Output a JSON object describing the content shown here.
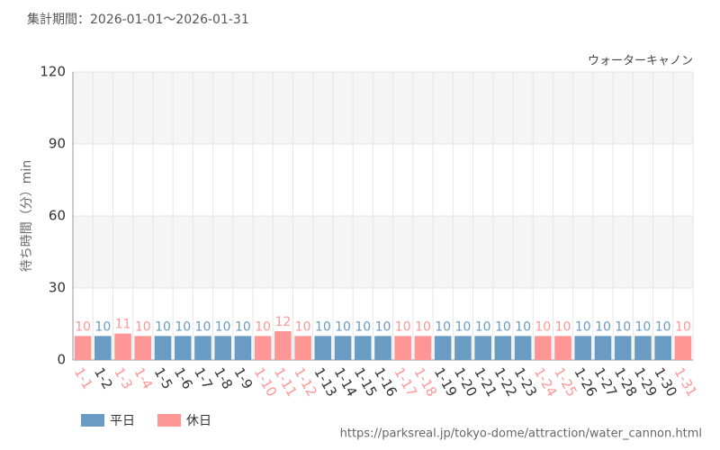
{
  "chart_data": {
    "type": "bar",
    "subtitle": "集計期間：2026-01-01～2026-01-31",
    "title": "ウォーターキャノン",
    "y_label": "待ち時間（分）min",
    "source": "https://parksreal.jp/tokyo-dome/attraction/water_cannon.html",
    "categories": [
      "1-1",
      "1-2",
      "1-3",
      "1-4",
      "1-5",
      "1-6",
      "1-7",
      "1-8",
      "1-9",
      "1-10",
      "1-11",
      "1-12",
      "1-13",
      "1-14",
      "1-15",
      "1-16",
      "1-17",
      "1-18",
      "1-19",
      "1-20",
      "1-21",
      "1-22",
      "1-23",
      "1-24",
      "1-25",
      "1-26",
      "1-27",
      "1-28",
      "1-29",
      "1-30",
      "1-31"
    ],
    "series": [
      {
        "name": "平日",
        "color": "#6a9bc3",
        "values": [
          null,
          10,
          null,
          null,
          10,
          10,
          10,
          10,
          10,
          null,
          null,
          null,
          10,
          10,
          10,
          10,
          null,
          null,
          10,
          10,
          10,
          10,
          10,
          null,
          null,
          10,
          10,
          10,
          10,
          10,
          null
        ]
      },
      {
        "name": "休日",
        "color": "#ff9696",
        "values": [
          10,
          null,
          11,
          10,
          null,
          null,
          null,
          null,
          null,
          10,
          12,
          10,
          null,
          null,
          null,
          null,
          10,
          10,
          null,
          null,
          null,
          null,
          null,
          10,
          10,
          null,
          null,
          null,
          null,
          null,
          10
        ]
      }
    ],
    "ylim": [
      0,
      120
    ],
    "yticks": [
      0,
      30,
      60,
      90,
      120
    ],
    "grid": true
  }
}
